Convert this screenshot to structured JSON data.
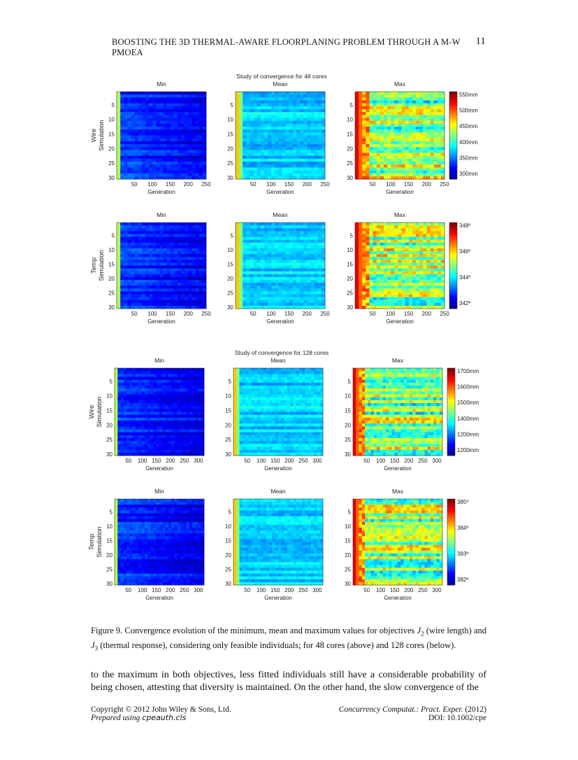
{
  "header": {
    "running_title": "BOOSTING THE 3D THERMAL-AWARE FLOORPLANING PROBLEM THROUGH A M-W PMOEA",
    "page_number": "11"
  },
  "figure": {
    "caption_label": "Figure 9.",
    "caption_text_1": "Convergence evolution of the minimum, mean and maximum values for objectives ",
    "caption_j2": "J",
    "caption_j2_sub": "2",
    "caption_text_2": " (wire length) and ",
    "caption_j3": "J",
    "caption_j3_sub": "3",
    "caption_text_3": " (thermal response), considering only feasible individuals; for 48 cores (above) and 128 cores (below)."
  },
  "body": {
    "paragraph": "to the maximum in both objectives, less fitted individuals still have a considerable probability of being chosen, attesting that diversity is maintained. On the other hand, the slow convergence of the"
  },
  "footer": {
    "copyright": "Copyright © 2012 John Wiley & Sons, Ltd.",
    "prepared_prefix": "Prepared using ",
    "prepared_cls": "cpeauth.cls",
    "journal": "Concurrency Computat.: Pract. Exper.",
    "year": " (2012)",
    "doi": "DOI: 10.1002/cpe"
  },
  "colors": {
    "colormap": [
      "#00008f",
      "#0000ff",
      "#0080ff",
      "#00ffff",
      "#80ff80",
      "#ffff00",
      "#ff8000",
      "#ff0000",
      "#800000"
    ]
  },
  "chart_data": [
    {
      "type": "heatmap",
      "title": "Study of convergence for 48 cores",
      "ylabel": "Wire Simulation",
      "xlabel": "Generation",
      "panels": [
        "Min",
        "Mean",
        "Max"
      ],
      "xticks": [
        "50",
        "100",
        "150",
        "200",
        "250"
      ],
      "yticks": [
        "5",
        "10",
        "15",
        "20",
        "25",
        "30"
      ],
      "colorbar_ticks": [
        "550mm",
        "500mm",
        "450mm",
        "400mm",
        "350mm",
        "300mm"
      ],
      "ylim": [
        1,
        30
      ],
      "xlim": [
        1,
        250
      ]
    },
    {
      "type": "heatmap",
      "title": "",
      "ylabel": "Temp Simulation",
      "xlabel": "Generation",
      "panels": [
        "Min",
        "Mean",
        "Max"
      ],
      "xticks": [
        "50",
        "100",
        "150",
        "200",
        "250"
      ],
      "yticks": [
        "5",
        "10",
        "15",
        "20",
        "25",
        "30"
      ],
      "colorbar_ticks": [
        "348º",
        "346º",
        "344º",
        "342º"
      ],
      "ylim": [
        1,
        30
      ],
      "xlim": [
        1,
        250
      ]
    },
    {
      "type": "heatmap",
      "title": "Study of convergence for 128 cores",
      "ylabel": "Wire Simulation",
      "xlabel": "Generation",
      "panels": [
        "Min",
        "Mean",
        "Max"
      ],
      "xticks": [
        "50",
        "100",
        "150",
        "200",
        "250",
        "300"
      ],
      "yticks": [
        "5",
        "10",
        "15",
        "20",
        "25",
        "30"
      ],
      "colorbar_ticks": [
        "1700mm",
        "1600mm",
        "1500mm",
        "1400mm",
        "1200mm",
        "1200mm"
      ],
      "ylim": [
        1,
        30
      ],
      "xlim": [
        1,
        320
      ]
    },
    {
      "type": "heatmap",
      "title": "",
      "ylabel": "Temp Simulation",
      "xlabel": "Generation",
      "panels": [
        "Min",
        "Mean",
        "Max"
      ],
      "xticks": [
        "50",
        "100",
        "150",
        "200",
        "250",
        "300"
      ],
      "yticks": [
        "5",
        "10",
        "15",
        "20",
        "25",
        "30"
      ],
      "colorbar_ticks": [
        "385º",
        "384º",
        "383º",
        "382º"
      ],
      "ylim": [
        1,
        30
      ],
      "xlim": [
        1,
        320
      ]
    }
  ]
}
